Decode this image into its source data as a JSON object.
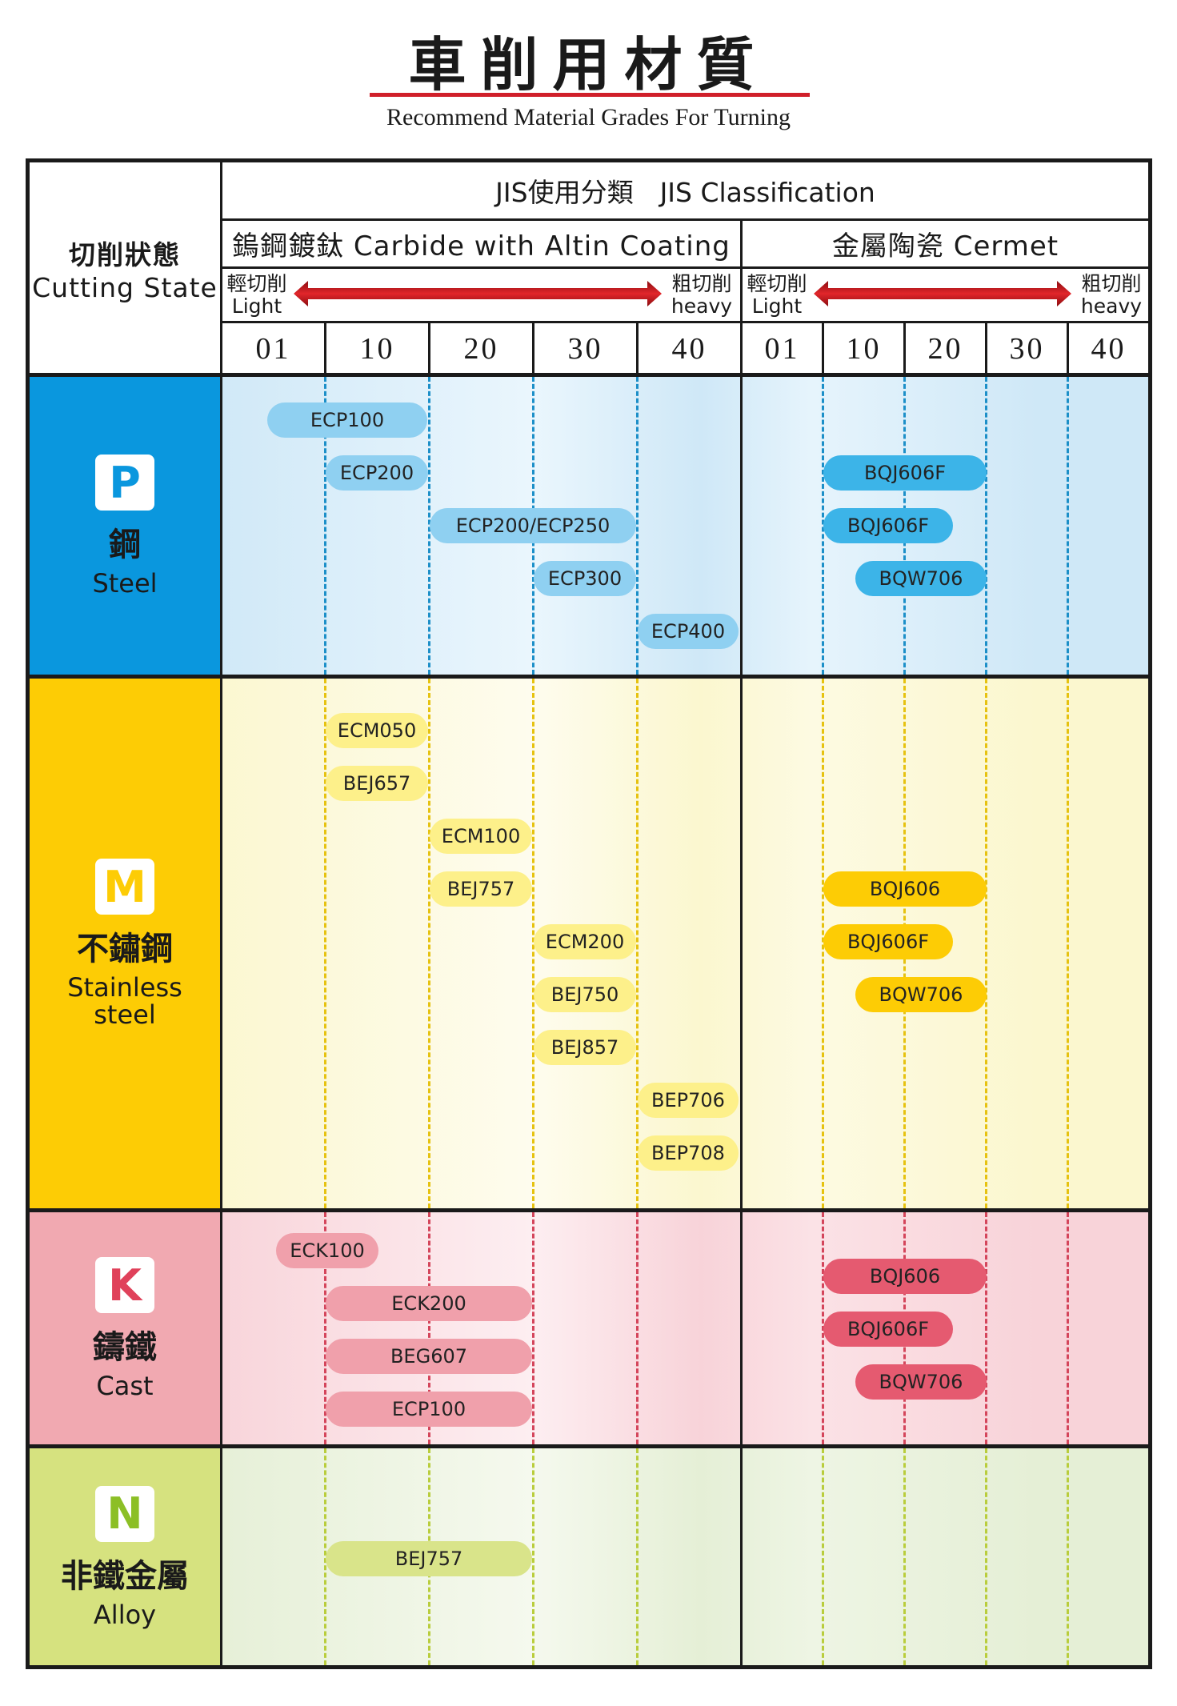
{
  "header": {
    "title": "車削用材質",
    "subtitle": "Recommend Material Grades For Turning"
  },
  "table": {
    "cutting_state_zh": "切削狀態",
    "cutting_state_en": "Cutting State",
    "jis": "JIS使用分類　JIS Classification",
    "groups": [
      {
        "label": "鎢鋼鍍鈦 Carbide with Altin Coating"
      },
      {
        "label": "金屬陶瓷 Cermet"
      }
    ],
    "light_zh": "輕切削",
    "light_en": "Light",
    "heavy_zh": "粗切削",
    "heavy_en": "heavy",
    "columns": [
      "01",
      "10",
      "20",
      "30",
      "40",
      "01",
      "10",
      "20",
      "30",
      "40"
    ]
  },
  "categories": [
    {
      "letter": "P",
      "zh": "鋼",
      "en": "Steel",
      "color": "#0a97de",
      "bg": "#d9eef9",
      "dash": "#1c8fc8"
    },
    {
      "letter": "M",
      "zh": "不鏽鋼",
      "en": "Stainless steel",
      "color": "#fdcc05",
      "bg": "#fdfad8",
      "dash": "#e6c210"
    },
    {
      "letter": "K",
      "zh": "鑄鐵",
      "en": "Cast",
      "color": "#f1a9b1",
      "bg": "#fadbe0",
      "dash": "#d4455b"
    },
    {
      "letter": "N",
      "zh": "非鐵金屬",
      "en": "Alloy",
      "color": "#d6e27f",
      "bg": "#eaf2d8",
      "dash": "#b9cd3c"
    }
  ],
  "grades": {
    "P": [
      "ECP100",
      "ECP200",
      "ECP200/ECP250",
      "ECP300",
      "ECP400",
      "BQJ606F",
      "BQJ606F",
      "BQW706"
    ],
    "M": [
      "ECM050",
      "BEJ657",
      "ECM100",
      "BEJ757",
      "ECM200",
      "BEJ750",
      "BEJ857",
      "BEP706",
      "BEP708",
      "BQJ606",
      "BQJ606F",
      "BQW706"
    ],
    "K": [
      "ECK100",
      "ECK200",
      "BEG607",
      "ECP100",
      "BQJ606",
      "BQJ606F",
      "BQW706"
    ],
    "N": [
      "BEJ757"
    ]
  },
  "colors": {
    "P_pill": "#8fd0f1",
    "P_cermet": "#3cb4e8",
    "M_pill": "#fdf08a",
    "M_cermet": "#fdcc05",
    "K_pill": "#f0a0ab",
    "K_cermet": "#e55a70",
    "N_pill": "#d9e48a",
    "arrow": "#c4161c"
  }
}
